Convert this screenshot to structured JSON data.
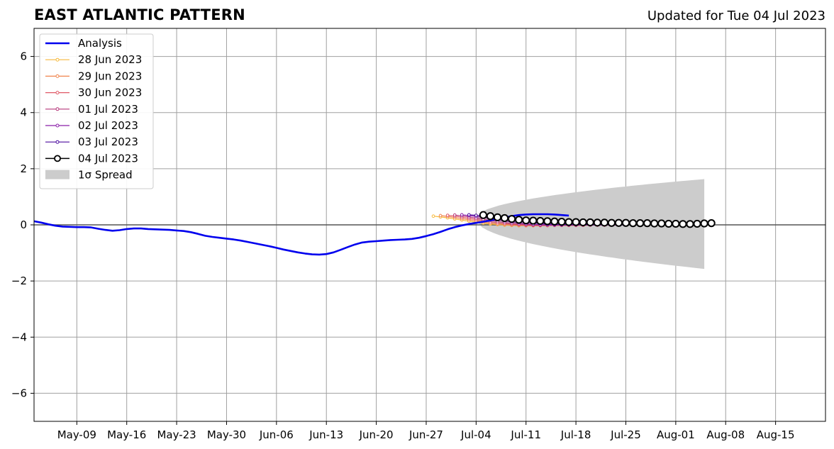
{
  "title": "EAST ATLANTIC PATTERN",
  "subtitle": "Updated for Tue 04 Jul 2023",
  "chart_data": {
    "type": "line",
    "title": "EAST ATLANTIC PATTERN",
    "subtitle": "Updated for Tue 04 Jul 2023",
    "xlabel": "",
    "ylabel": "",
    "xlim": [
      "2023-05-03",
      "2023-08-22"
    ],
    "ylim": [
      -7,
      7
    ],
    "grid": true,
    "legend_position": "top-left",
    "x_ticks": [
      "May-09",
      "May-16",
      "May-23",
      "May-30",
      "Jun-06",
      "Jun-13",
      "Jun-20",
      "Jun-27",
      "Jul-04",
      "Jul-11",
      "Jul-18",
      "Jul-25",
      "Aug-01",
      "Aug-08",
      "Aug-15"
    ],
    "y_ticks": [
      "6",
      "4",
      "2",
      "0",
      "−2",
      "−4",
      "−6"
    ],
    "y_tick_values": [
      6,
      4,
      2,
      0,
      -2,
      -4,
      -6
    ],
    "colors": {
      "analysis": "#0000ee",
      "spread": "#cccccc",
      "grid": "#a0a0a0",
      "zero_line": "#555555"
    },
    "analysis": {
      "name": "Analysis",
      "start_date": "2023-05-03",
      "values": [
        0.13,
        0.08,
        0.02,
        -0.03,
        -0.06,
        -0.07,
        -0.08,
        -0.08,
        -0.09,
        -0.14,
        -0.18,
        -0.21,
        -0.19,
        -0.15,
        -0.13,
        -0.13,
        -0.15,
        -0.16,
        -0.17,
        -0.18,
        -0.2,
        -0.22,
        -0.26,
        -0.32,
        -0.39,
        -0.43,
        -0.46,
        -0.49,
        -0.52,
        -0.56,
        -0.61,
        -0.66,
        -0.71,
        -0.76,
        -0.82,
        -0.88,
        -0.93,
        -0.98,
        -1.02,
        -1.05,
        -1.06,
        -1.04,
        -0.98,
        -0.89,
        -0.79,
        -0.7,
        -0.63,
        -0.6,
        -0.58,
        -0.56,
        -0.54,
        -0.53,
        -0.52,
        -0.5,
        -0.46,
        -0.4,
        -0.33,
        -0.25,
        -0.16,
        -0.08,
        -0.02,
        0.03,
        0.07,
        0.11,
        0.16,
        0.21,
        0.26,
        0.31,
        0.35,
        0.37,
        0.38,
        0.38,
        0.38,
        0.37,
        0.35,
        0.33
      ]
    },
    "forecasts": [
      {
        "name": "28 Jun 2023",
        "color": "#f6b93b",
        "start_date": "2023-06-28",
        "values": [
          0.31,
          0.28,
          0.25,
          0.21,
          0.17,
          0.13,
          0.09,
          0.06,
          0.03,
          0.01,
          -0.01,
          -0.02,
          -0.03,
          -0.03,
          -0.03,
          -0.03,
          -0.02,
          -0.02,
          -0.02,
          -0.02,
          -0.02,
          -0.01,
          -0.01,
          -0.01
        ]
      },
      {
        "name": "29 Jun 2023",
        "color": "#f0844c",
        "start_date": "2023-06-29",
        "values": [
          0.33,
          0.3,
          0.26,
          0.22,
          0.18,
          0.14,
          0.1,
          0.06,
          0.03,
          0.01,
          -0.01,
          -0.02,
          -0.03,
          -0.03,
          -0.03,
          -0.03,
          -0.02,
          -0.02,
          -0.02,
          -0.02,
          -0.02,
          -0.01,
          -0.01,
          -0.01
        ]
      },
      {
        "name": "30 Jun 2023",
        "color": "#e05865",
        "start_date": "2023-06-30",
        "values": [
          0.34,
          0.31,
          0.27,
          0.23,
          0.19,
          0.15,
          0.11,
          0.07,
          0.04,
          0.02,
          0.0,
          -0.01,
          -0.02,
          -0.02,
          -0.02,
          -0.02,
          -0.02,
          -0.02,
          -0.02,
          -0.01,
          -0.01,
          -0.01,
          -0.01,
          -0.01
        ]
      },
      {
        "name": "01 Jul 2023",
        "color": "#b5367a",
        "start_date": "2023-07-01",
        "values": [
          0.35,
          0.32,
          0.28,
          0.24,
          0.2,
          0.16,
          0.12,
          0.08,
          0.05,
          0.03,
          0.01,
          0.0,
          -0.01,
          -0.01,
          -0.01,
          -0.01,
          -0.01,
          -0.01,
          -0.01,
          -0.01,
          -0.01,
          -0.01,
          -0.01,
          -0.01
        ]
      },
      {
        "name": "02 Jul 2023",
        "color": "#8b1fa9",
        "start_date": "2023-07-02",
        "values": [
          0.36,
          0.33,
          0.3,
          0.26,
          0.22,
          0.18,
          0.14,
          0.1,
          0.07,
          0.04,
          0.02,
          0.01,
          0.0,
          0.0,
          0.0,
          0.0,
          0.0,
          0.0,
          0.0,
          0.0,
          0.0,
          0.0,
          0.0,
          0.0
        ]
      },
      {
        "name": "03 Jul 2023",
        "color": "#4b0c9e",
        "start_date": "2023-07-03",
        "values": [
          0.36,
          0.34,
          0.31,
          0.28,
          0.24,
          0.2,
          0.16,
          0.13,
          0.1,
          0.07,
          0.05,
          0.03,
          0.02,
          0.01,
          0.01,
          0.01,
          0.01,
          0.01,
          0.01,
          0.01,
          0.01,
          0.01,
          0.01,
          0.01
        ]
      },
      {
        "name": "04 Jul 2023",
        "color": "#000000",
        "start_date": "2023-07-05",
        "markers": "open-circle",
        "values": [
          0.35,
          0.31,
          0.27,
          0.24,
          0.21,
          0.18,
          0.16,
          0.15,
          0.14,
          0.13,
          0.12,
          0.11,
          0.1,
          0.1,
          0.09,
          0.09,
          0.08,
          0.08,
          0.07,
          0.07,
          0.07,
          0.06,
          0.06,
          0.06,
          0.05,
          0.05,
          0.04,
          0.04,
          0.03,
          0.03,
          0.04,
          0.05,
          0.06
        ]
      }
    ],
    "spread": {
      "name": "1σ Spread",
      "start_date": "2023-07-04",
      "end_date": "2023-08-05",
      "upper_start": 0.25,
      "upper_end": 1.63,
      "lower_start": 0.2,
      "lower_end": -1.57
    },
    "legend": [
      "Analysis",
      "28 Jun 2023",
      "29 Jun 2023",
      "30 Jun 2023",
      "01 Jul 2023",
      "02 Jul 2023",
      "03 Jul 2023",
      "04 Jul 2023",
      "1σ Spread"
    ]
  }
}
